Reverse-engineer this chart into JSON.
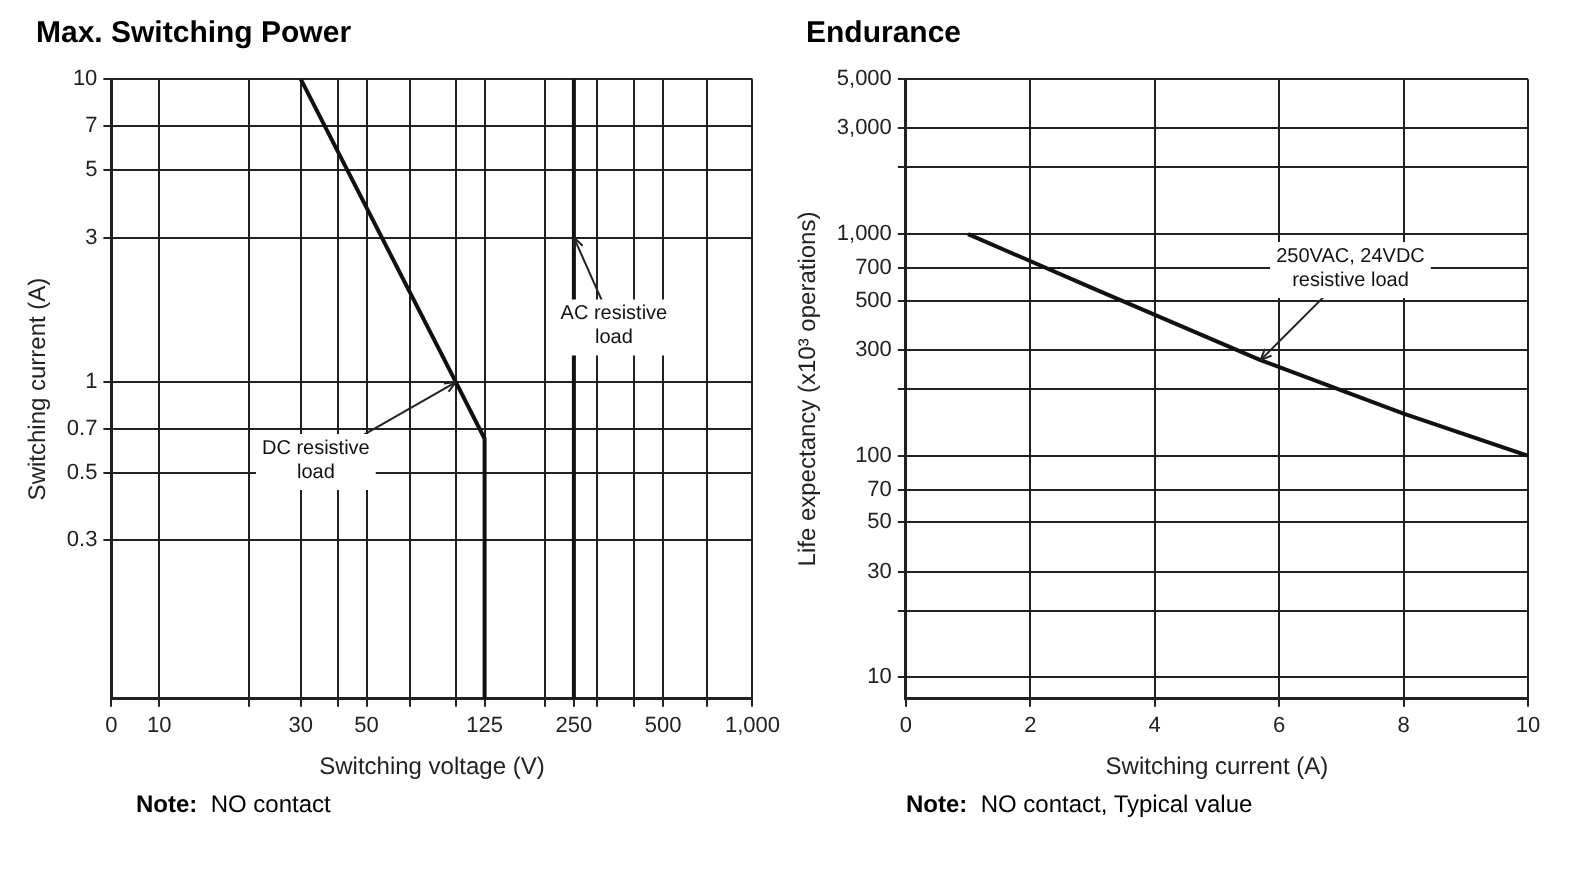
{
  "chart_data": [
    {
      "type": "line",
      "title": "Max. Switching Power",
      "xlabel": "Switching voltage (V)",
      "ylabel": "Switching current (A)",
      "log": "xy",
      "grid": true,
      "legend": false,
      "marker": "none",
      "line_style": "solid",
      "xlim": [
        0,
        1000
      ],
      "xticks": [
        0,
        10,
        {
          "value": 20,
          "label": null
        },
        30,
        {
          "value": 40,
          "label": null
        },
        50,
        {
          "value": 70,
          "label": null
        },
        {
          "value": 100,
          "label": null
        },
        125,
        {
          "value": 200,
          "label": null
        },
        250,
        {
          "value": 300,
          "label": null
        },
        {
          "value": 400,
          "label": null
        },
        500,
        {
          "value": 700,
          "label": null
        },
        {
          "value": 1000,
          "label": "1,000"
        }
      ],
      "ylim": [
        0.09,
        10
      ],
      "yticks": [
        0.3,
        0.5,
        0.7,
        1,
        3,
        5,
        7,
        10
      ],
      "series": [
        {
          "color": "#111111",
          "x": [
            30,
            100,
            125,
            125
          ],
          "values": [
            10,
            1,
            0.65,
            0.09
          ]
        },
        {
          "color": "#111111",
          "x": [
            250,
            250
          ],
          "values": [
            10,
            0.09
          ]
        }
      ],
      "annotations": [
        {
          "text": "DC resistive load",
          "x": 100,
          "y": 1
        },
        {
          "text": "AC resistive load",
          "x": 250,
          "y": 3
        },
        "Note: NO contact"
      ]
    },
    {
      "type": "line",
      "title": "Endurance",
      "xlabel": "Switching current (A)",
      "ylabel": "Life expectancy (x10³ operations)",
      "log": "y",
      "grid": true,
      "legend": false,
      "marker": "none",
      "line_style": "solid",
      "xlim": [
        0,
        10
      ],
      "xticks": [
        0,
        2,
        4,
        6,
        8,
        10
      ],
      "ylim": [
        8,
        5000
      ],
      "yticks": [
        10,
        {
          "value": 20,
          "label": null
        },
        30,
        50,
        70,
        100,
        {
          "value": 200,
          "label": null
        },
        300,
        500,
        700,
        {
          "value": 1000,
          "label": "1,000"
        },
        {
          "value": 2000,
          "label": null
        },
        {
          "value": 3000,
          "label": "3,000"
        },
        {
          "value": 5000,
          "label": "5,000"
        }
      ],
      "series": [
        {
          "color": "#111111",
          "x": [
            1,
            3,
            5.7,
            8,
            10
          ],
          "values": [
            1000,
            570,
            270,
            155,
            100
          ]
        }
      ],
      "annotations": [
        {
          "text": "250VAC, 24VDC resistive load",
          "x": 5.7,
          "y": 270
        },
        "Note: NO contact, Typical value"
      ]
    }
  ]
}
